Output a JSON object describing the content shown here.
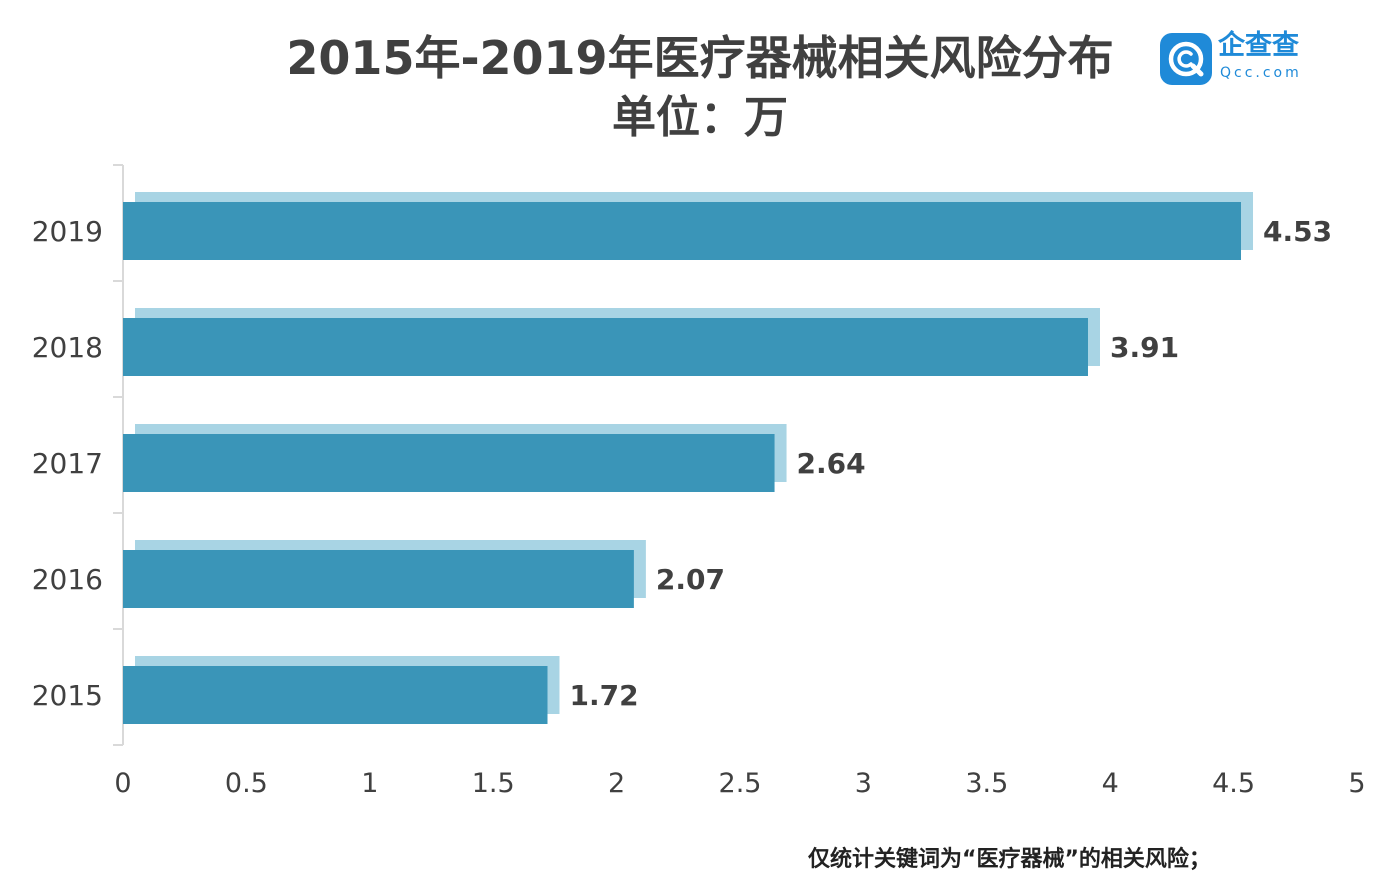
{
  "title": "2015年-2019年医疗器械相关风险分布",
  "subtitle": "单位：万",
  "logo": {
    "name": "企查查",
    "domain": "Qcc.com",
    "icon": "qcc-logo-icon",
    "color": "#1f8ad8"
  },
  "footnote": "仅统计关键词为“医疗器械”的相关风险；",
  "colors": {
    "bar": "#3a95b8",
    "bar_shadow": "#a8d4e4",
    "axis": "#d9d9d9",
    "text": "#404040"
  },
  "chart_data": {
    "type": "bar",
    "orientation": "horizontal",
    "categories": [
      "2019",
      "2018",
      "2017",
      "2016",
      "2015"
    ],
    "values": [
      4.53,
      3.91,
      2.64,
      2.07,
      1.72
    ],
    "value_labels": [
      "4.53",
      "3.91",
      "2.64",
      "2.07",
      "1.72"
    ],
    "xlim": [
      0,
      5
    ],
    "x_ticks": [
      "0",
      "0.5",
      "1",
      "1.5",
      "2",
      "2.5",
      "3",
      "3.5",
      "4",
      "4.5",
      "5"
    ],
    "grid": false
  }
}
